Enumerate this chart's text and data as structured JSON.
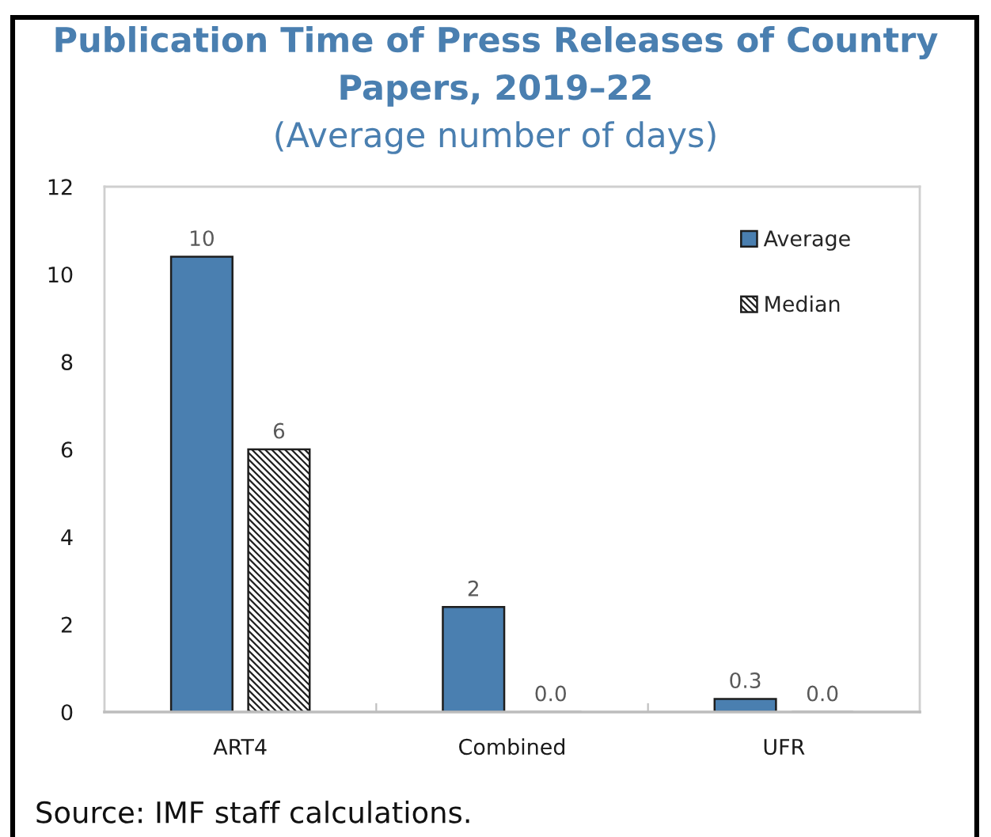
{
  "chart_data": {
    "type": "bar",
    "title": "Publication Time of Press Releases of Country Papers, 2019–22",
    "subtitle": "(Average number of days)",
    "categories": [
      "ART4",
      "Combined",
      "UFR"
    ],
    "series": [
      {
        "name": "Average",
        "color": "#4a7fb0",
        "values": [
          10.4,
          2.4,
          0.3
        ],
        "value_labels": [
          "10",
          "2",
          "0.3"
        ]
      },
      {
        "name": "Median",
        "color": "#1e1e1e",
        "values": [
          6.0,
          0.0,
          0.0
        ],
        "value_labels": [
          "6",
          "0.0",
          "0.0"
        ]
      }
    ],
    "ylim": [
      0,
      12
    ],
    "yticks": [
      0,
      2,
      4,
      6,
      8,
      10,
      12
    ],
    "grid": false,
    "legend": "top right",
    "annotations": [
      "Source: IMF staff calculations."
    ]
  }
}
